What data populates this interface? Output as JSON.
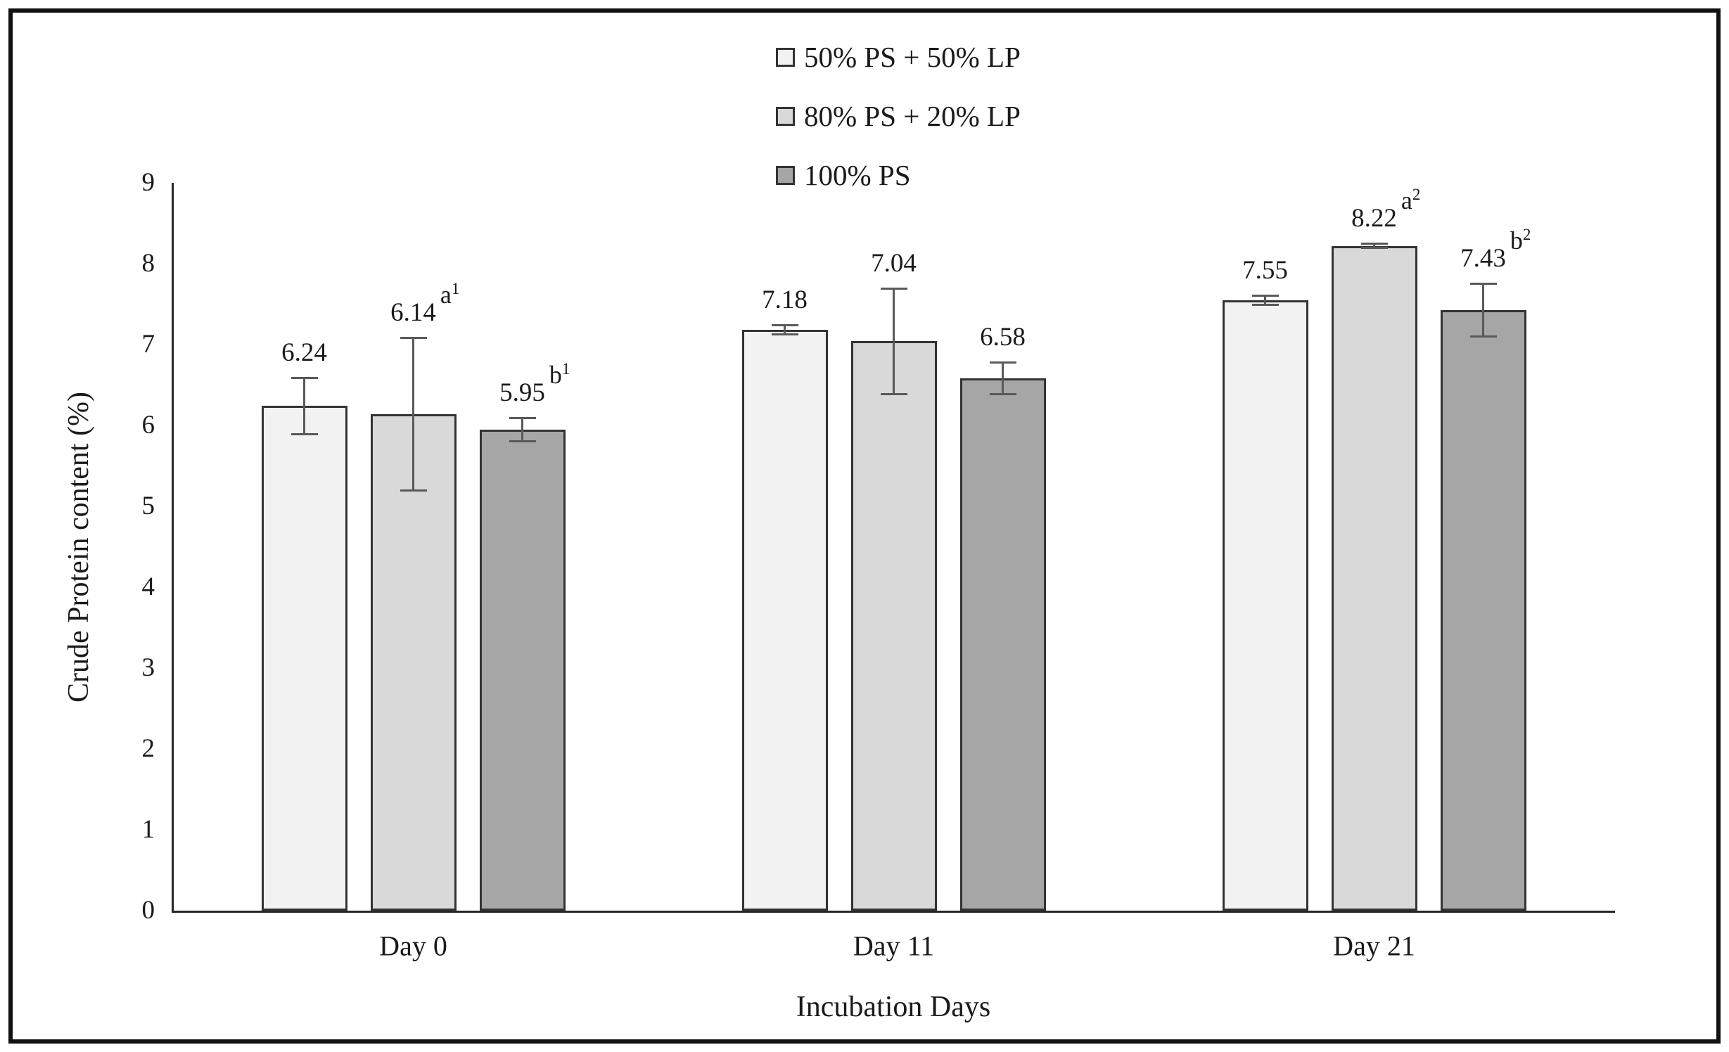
{
  "chart_data": {
    "type": "bar",
    "title": "",
    "xlabel": "Incubation Days",
    "ylabel": "Crude Protein content (%)",
    "ylim": [
      0,
      9
    ],
    "yticks": [
      0,
      1,
      2,
      3,
      4,
      5,
      6,
      7,
      8,
      9
    ],
    "grid": false,
    "legend_position": "top-center",
    "categories": [
      "Day 0",
      "Day 11",
      "Day 21"
    ],
    "series": [
      {
        "name": "50% PS + 50% LP",
        "fill": "#f2f2f2",
        "points": [
          {
            "category": "Day 0",
            "value": 6.24,
            "label": "6.24",
            "error": 0.35,
            "annotation": null
          },
          {
            "category": "Day 11",
            "value": 7.18,
            "label": "7.18",
            "error": 0.06,
            "annotation": null
          },
          {
            "category": "Day 21",
            "value": 7.55,
            "label": "7.55",
            "error": 0.06,
            "annotation": null
          }
        ]
      },
      {
        "name": "80% PS + 20% LP",
        "fill": "#d9d9d9",
        "points": [
          {
            "category": "Day 0",
            "value": 6.14,
            "label": "6.14",
            "error": 0.95,
            "annotation": {
              "letter": "a",
              "sup": "1"
            }
          },
          {
            "category": "Day 11",
            "value": 7.04,
            "label": "7.04",
            "error": 0.66,
            "annotation": null
          },
          {
            "category": "Day 21",
            "value": 8.22,
            "label": "8.22",
            "error": 0.03,
            "annotation": {
              "letter": "a",
              "sup": "2"
            }
          }
        ]
      },
      {
        "name": "100% PS",
        "fill": "#a6a6a6",
        "points": [
          {
            "category": "Day 0",
            "value": 5.95,
            "label": "5.95",
            "error": 0.15,
            "annotation": {
              "letter": "b",
              "sup": "1"
            }
          },
          {
            "category": "Day 11",
            "value": 6.58,
            "label": "6.58",
            "error": 0.2,
            "annotation": null
          },
          {
            "category": "Day 21",
            "value": 7.43,
            "label": "7.43",
            "error": 0.33,
            "annotation": {
              "letter": "b",
              "sup": "2"
            }
          }
        ]
      }
    ],
    "legend": [
      {
        "label": "50% PS + 50% LP",
        "swatch_fill": "#f2f2f2"
      },
      {
        "label": "80% PS + 20% LP",
        "swatch_fill": "#d9d9d9"
      },
      {
        "label": "100% PS",
        "swatch_fill": "#a6a6a6"
      }
    ],
    "colors": {
      "bar_border": "#333333",
      "axis": "#262626",
      "error_bar": "#595959",
      "text": "#1a1a1a",
      "frame_border": "#111111"
    }
  }
}
